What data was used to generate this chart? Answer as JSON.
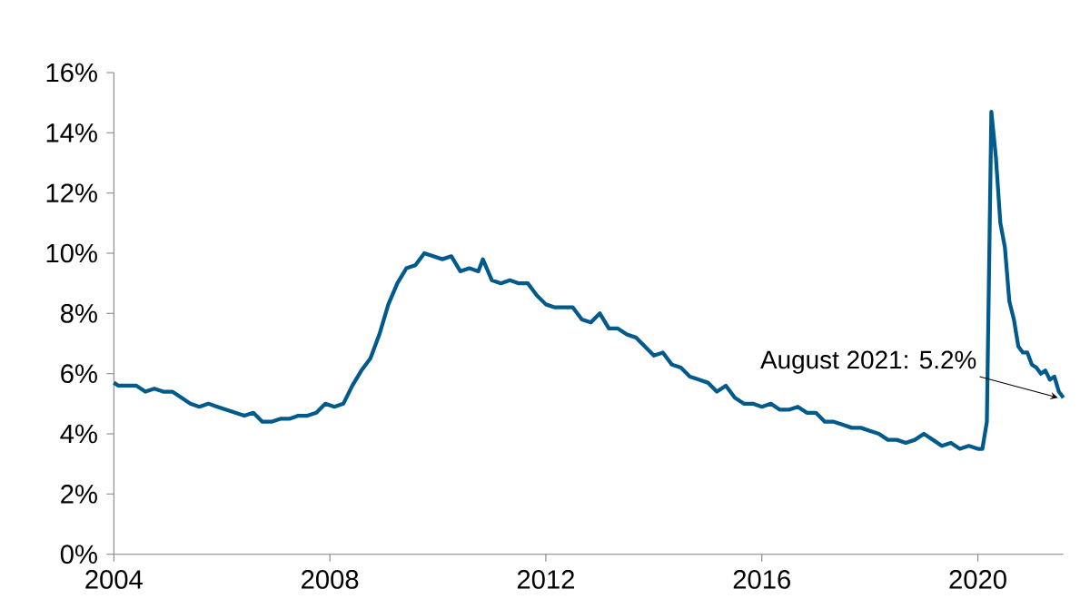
{
  "chart_data": {
    "type": "line",
    "color": "#005a8c",
    "x": [
      "2004-01",
      "2004-02",
      "2004-04",
      "2004-06",
      "2004-08",
      "2004-10",
      "2004-12",
      "2005-02",
      "2005-04",
      "2005-06",
      "2005-08",
      "2005-10",
      "2005-12",
      "2006-02",
      "2006-04",
      "2006-06",
      "2006-08",
      "2006-10",
      "2006-12",
      "2007-02",
      "2007-04",
      "2007-06",
      "2007-08",
      "2007-10",
      "2007-12",
      "2008-02",
      "2008-04",
      "2008-06",
      "2008-08",
      "2008-10",
      "2008-12",
      "2009-02",
      "2009-04",
      "2009-06",
      "2009-08",
      "2009-10",
      "2009-12",
      "2010-02",
      "2010-04",
      "2010-06",
      "2010-08",
      "2010-10",
      "2010-11",
      "2011-01",
      "2011-03",
      "2011-05",
      "2011-07",
      "2011-09",
      "2011-11",
      "2012-01",
      "2012-03",
      "2012-05",
      "2012-07",
      "2012-09",
      "2012-11",
      "2013-01",
      "2013-03",
      "2013-05",
      "2013-07",
      "2013-09",
      "2013-11",
      "2014-01",
      "2014-03",
      "2014-05",
      "2014-07",
      "2014-09",
      "2014-11",
      "2015-01",
      "2015-03",
      "2015-05",
      "2015-07",
      "2015-09",
      "2015-11",
      "2016-01",
      "2016-03",
      "2016-05",
      "2016-07",
      "2016-09",
      "2016-11",
      "2017-01",
      "2017-03",
      "2017-05",
      "2017-07",
      "2017-09",
      "2017-11",
      "2018-01",
      "2018-03",
      "2018-05",
      "2018-07",
      "2018-09",
      "2018-11",
      "2019-01",
      "2019-03",
      "2019-05",
      "2019-07",
      "2019-09",
      "2019-11",
      "2020-01",
      "2020-02",
      "2020-03",
      "2020-04",
      "2020-05",
      "2020-06",
      "2020-07",
      "2020-08",
      "2020-09",
      "2020-10",
      "2020-11",
      "2020-12",
      "2021-01",
      "2021-02",
      "2021-03",
      "2021-04",
      "2021-05",
      "2021-06",
      "2021-07",
      "2021-08"
    ],
    "values": [
      5.7,
      5.6,
      5.6,
      5.6,
      5.4,
      5.5,
      5.4,
      5.4,
      5.2,
      5.0,
      4.9,
      5.0,
      4.9,
      4.8,
      4.7,
      4.6,
      4.7,
      4.4,
      4.4,
      4.5,
      4.5,
      4.6,
      4.6,
      4.7,
      5.0,
      4.9,
      5.0,
      5.6,
      6.1,
      6.5,
      7.3,
      8.3,
      9.0,
      9.5,
      9.6,
      10.0,
      9.9,
      9.8,
      9.9,
      9.4,
      9.5,
      9.4,
      9.8,
      9.1,
      9.0,
      9.1,
      9.0,
      9.0,
      8.6,
      8.3,
      8.2,
      8.2,
      8.2,
      7.8,
      7.7,
      8.0,
      7.5,
      7.5,
      7.3,
      7.2,
      6.9,
      6.6,
      6.7,
      6.3,
      6.2,
      5.9,
      5.8,
      5.7,
      5.4,
      5.6,
      5.2,
      5.0,
      5.0,
      4.9,
      5.0,
      4.8,
      4.8,
      4.9,
      4.7,
      4.7,
      4.4,
      4.4,
      4.3,
      4.2,
      4.2,
      4.1,
      4.0,
      3.8,
      3.8,
      3.7,
      3.8,
      4.0,
      3.8,
      3.6,
      3.7,
      3.5,
      3.6,
      3.5,
      3.5,
      4.4,
      14.7,
      13.2,
      11.0,
      10.2,
      8.4,
      7.8,
      6.9,
      6.7,
      6.7,
      6.3,
      6.2,
      6.0,
      6.1,
      5.8,
      5.9,
      5.4,
      5.2
    ],
    "xlim": [
      "2004-01",
      "2021-08"
    ],
    "xticks": [
      "2004",
      "2008",
      "2012",
      "2016",
      "2020"
    ],
    "ylim": [
      0,
      16
    ],
    "yticks": [
      {
        "value": 0,
        "label": "0%"
      },
      {
        "value": 2,
        "label": "2%"
      },
      {
        "value": 4,
        "label": "4%"
      },
      {
        "value": 6,
        "label": "6%"
      },
      {
        "value": 8,
        "label": "8%"
      },
      {
        "value": 10,
        "label": "10%"
      },
      {
        "value": 12,
        "label": "12%"
      },
      {
        "value": 14,
        "label": "14%"
      },
      {
        "value": 16,
        "label": "16%"
      }
    ],
    "grid": false,
    "annotations": [
      {
        "text": "August 2021: 5.2%",
        "x": "2021-08",
        "y": 5.2
      }
    ]
  }
}
